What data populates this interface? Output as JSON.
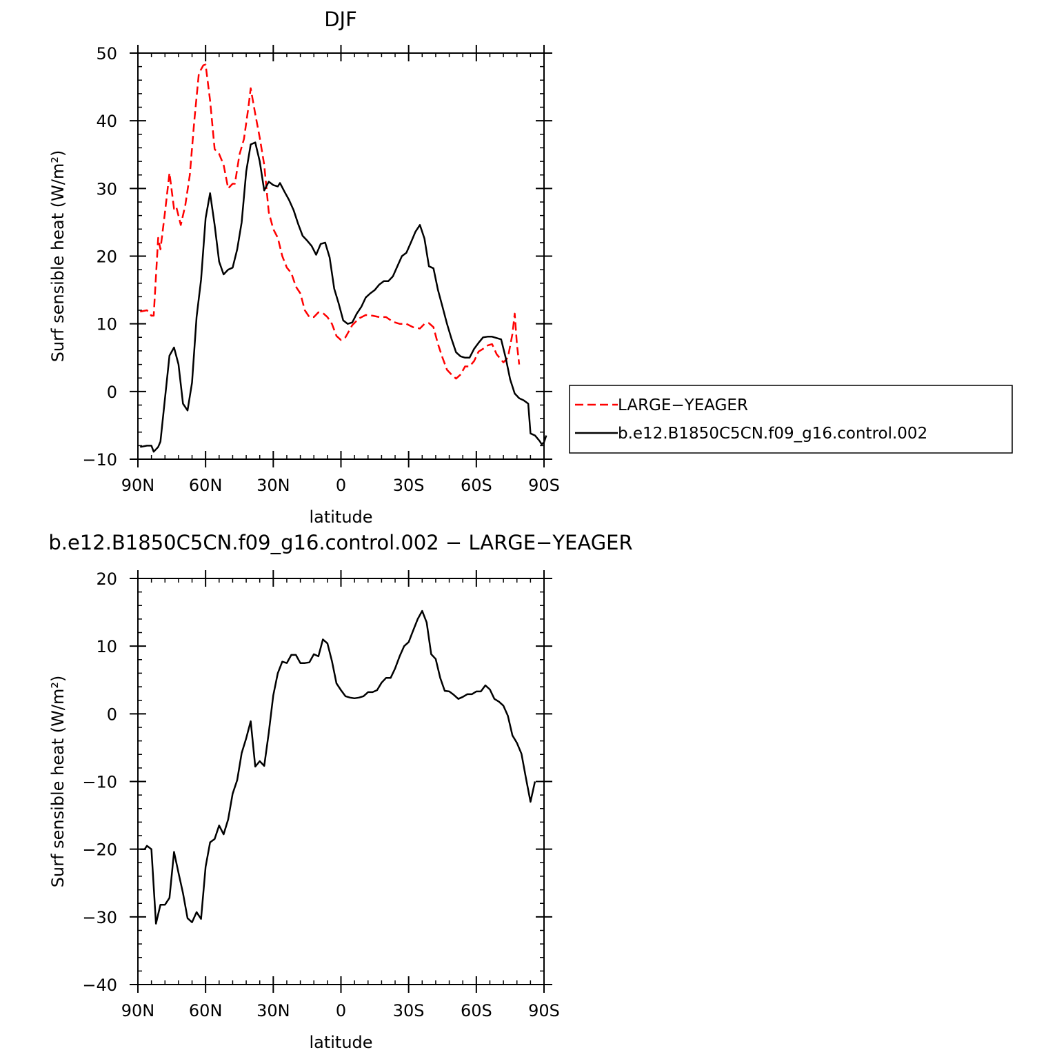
{
  "top_title": "DJF",
  "bottom_title": "b.e12.B1850C5CN.f09_g16.control.002 − LARGE−YEAGER",
  "legend": {
    "large": "LARGE−YEAGER",
    "control": "b.e12.B1850C5CN.f09_g16.control.002"
  },
  "chart_data": [
    {
      "type": "line",
      "title": "DJF",
      "xlabel": "latitude",
      "ylabel": "Surf sensible heat (W/m²)",
      "xlim": [
        90,
        -90
      ],
      "ylim": [
        -10,
        50
      ],
      "x_ticks": [
        90,
        60,
        30,
        0,
        -30,
        -60,
        -90
      ],
      "x_tick_labels": [
        "90N",
        "60N",
        "30N",
        "0",
        "30S",
        "60S",
        "90S"
      ],
      "y_ticks": [
        -10,
        0,
        10,
        20,
        30,
        40,
        50
      ],
      "y_tick_labels": [
        "−10",
        "0",
        "10",
        "20",
        "30",
        "40",
        "50"
      ],
      "legend_position": "right",
      "series": [
        {
          "name": "LARGE−YEAGER",
          "color": "#ff0000",
          "dash": "dashed",
          "points": [
            [
              89,
              11.8
            ],
            [
              86,
              12
            ],
            [
              84,
              11.2
            ],
            [
              83,
              11.2
            ],
            [
              81,
              22.7
            ],
            [
              80,
              21
            ],
            [
              78,
              26.5
            ],
            [
              76,
              32.3
            ],
            [
              74,
              27
            ],
            [
              73,
              27.3
            ],
            [
              71,
              24.6
            ],
            [
              69,
              27.5
            ],
            [
              67,
              32
            ],
            [
              65,
              40
            ],
            [
              63,
              47
            ],
            [
              61,
              48.2
            ],
            [
              60,
              48.3
            ],
            [
              58,
              43
            ],
            [
              56,
              35.8
            ],
            [
              54,
              35.1
            ],
            [
              52,
              33.5
            ],
            [
              50,
              30
            ],
            [
              48,
              30.7
            ],
            [
              47,
              30.7
            ],
            [
              45,
              35
            ],
            [
              43,
              37.3
            ],
            [
              41,
              42
            ],
            [
              40,
              44.8
            ],
            [
              38,
              41
            ],
            [
              36,
              37.5
            ],
            [
              34,
              33.5
            ],
            [
              32,
              26.5
            ],
            [
              30,
              24
            ],
            [
              28,
              22.7
            ],
            [
              26,
              20
            ],
            [
              24,
              18.3
            ],
            [
              22,
              17.5
            ],
            [
              20,
              15.5
            ],
            [
              18,
              14.5
            ],
            [
              16,
              12
            ],
            [
              14,
              11
            ],
            [
              12,
              11
            ],
            [
              10,
              11.7
            ],
            [
              8,
              11.6
            ],
            [
              6,
              11
            ],
            [
              4,
              10
            ],
            [
              2,
              8.2
            ],
            [
              0,
              7.6
            ],
            [
              -2,
              8
            ],
            [
              -5,
              9.8
            ],
            [
              -8,
              10.8
            ],
            [
              -11,
              11.3
            ],
            [
              -14,
              11.2
            ],
            [
              -17,
              11
            ],
            [
              -20,
              11
            ],
            [
              -23,
              10.3
            ],
            [
              -26,
              10
            ],
            [
              -29,
              10
            ],
            [
              -32,
              9.5
            ],
            [
              -35,
              9.3
            ],
            [
              -37,
              10
            ],
            [
              -39,
              10.1
            ],
            [
              -41,
              9.5
            ],
            [
              -43,
              7
            ],
            [
              -45,
              5
            ],
            [
              -47,
              3.2
            ],
            [
              -49,
              2.5
            ],
            [
              -51,
              1.9
            ],
            [
              -53,
              2.5
            ],
            [
              -55,
              3.7
            ],
            [
              -57,
              3.7
            ],
            [
              -59,
              4.5
            ],
            [
              -61,
              5.9
            ],
            [
              -63,
              6.3
            ],
            [
              -65,
              6.8
            ],
            [
              -67,
              7
            ],
            [
              -69,
              5.5
            ],
            [
              -72,
              4.3
            ],
            [
              -74,
              5
            ],
            [
              -76,
              8.5
            ],
            [
              -77,
              11.5
            ],
            [
              -78,
              7
            ],
            [
              -79,
              4
            ]
          ]
        },
        {
          "name": "b.e12.B1850C5CN.f09_g16.control.002",
          "color": "#000000",
          "dash": "solid",
          "points": [
            [
              89,
              -8.2
            ],
            [
              86,
              -8
            ],
            [
              84,
              -8
            ],
            [
              83,
              -8.9
            ],
            [
              81,
              -8.2
            ],
            [
              80,
              -7.4
            ],
            [
              78,
              -1
            ],
            [
              76,
              5.3
            ],
            [
              74,
              6.5
            ],
            [
              72,
              4
            ],
            [
              70,
              -1.8
            ],
            [
              68,
              -2.8
            ],
            [
              66,
              1.3
            ],
            [
              64,
              11
            ],
            [
              62,
              16.5
            ],
            [
              60,
              25.6
            ],
            [
              58,
              29.3
            ],
            [
              56,
              24.6
            ],
            [
              54,
              19.2
            ],
            [
              52,
              17.3
            ],
            [
              50,
              18
            ],
            [
              48,
              18.3
            ],
            [
              46,
              21
            ],
            [
              44,
              25
            ],
            [
              42,
              32.5
            ],
            [
              40,
              36.5
            ],
            [
              38,
              36.8
            ],
            [
              36,
              34
            ],
            [
              34,
              29.7
            ],
            [
              32,
              31
            ],
            [
              30,
              30.5
            ],
            [
              28,
              30.3
            ],
            [
              27,
              30.8
            ],
            [
              25,
              29.5
            ],
            [
              23,
              28.3
            ],
            [
              21,
              26.8
            ],
            [
              19,
              24.8
            ],
            [
              17,
              23
            ],
            [
              15,
              22.3
            ],
            [
              13,
              21.5
            ],
            [
              11,
              20.2
            ],
            [
              9,
              21.8
            ],
            [
              7,
              22
            ],
            [
              5,
              19.8
            ],
            [
              3,
              15.2
            ],
            [
              1,
              13
            ],
            [
              -1,
              10.5
            ],
            [
              -3,
              10
            ],
            [
              -5,
              10.2
            ],
            [
              -7,
              11.5
            ],
            [
              -9,
              12.5
            ],
            [
              -11,
              13.9
            ],
            [
              -13,
              14.5
            ],
            [
              -15,
              15
            ],
            [
              -17,
              15.8
            ],
            [
              -19,
              16.3
            ],
            [
              -21,
              16.3
            ],
            [
              -23,
              17
            ],
            [
              -25,
              18.5
            ],
            [
              -27,
              20
            ],
            [
              -29,
              20.5
            ],
            [
              -31,
              22
            ],
            [
              -33,
              23.6
            ],
            [
              -35,
              24.6
            ],
            [
              -37,
              22.6
            ],
            [
              -39,
              18.5
            ],
            [
              -41,
              18.2
            ],
            [
              -43,
              15
            ],
            [
              -45,
              12.5
            ],
            [
              -47,
              10
            ],
            [
              -49,
              7.8
            ],
            [
              -51,
              5.8
            ],
            [
              -53,
              5.2
            ],
            [
              -55,
              5
            ],
            [
              -57,
              5
            ],
            [
              -59,
              6.3
            ],
            [
              -61,
              7.2
            ],
            [
              -63,
              8
            ],
            [
              -65,
              8.1
            ],
            [
              -67,
              8.1
            ],
            [
              -69,
              7.9
            ],
            [
              -71,
              7.7
            ],
            [
              -73,
              5
            ],
            [
              -75,
              1.8
            ],
            [
              -77,
              -0.3
            ],
            [
              -79,
              -1
            ],
            [
              -81,
              -1.3
            ],
            [
              -83,
              -1.8
            ],
            [
              -84,
              -6.2
            ],
            [
              -86,
              -6.5
            ],
            [
              -88,
              -7.3
            ],
            [
              -89,
              -7.8
            ],
            [
              -90,
              -7.5
            ],
            [
              -91,
              -6.5
            ]
          ]
        }
      ]
    },
    {
      "type": "line",
      "title": "b.e12.B1850C5CN.f09_g16.control.002 − LARGE−YEAGER",
      "xlabel": "latitude",
      "ylabel": "Surf sensible heat (W/m²)",
      "xlim": [
        90,
        -90
      ],
      "ylim": [
        -40,
        20
      ],
      "x_ticks": [
        90,
        60,
        30,
        0,
        -30,
        -60,
        -90
      ],
      "x_tick_labels": [
        "90N",
        "60N",
        "30N",
        "0",
        "30S",
        "60S",
        "90S"
      ],
      "y_ticks": [
        -40,
        -30,
        -20,
        -10,
        0,
        10,
        20
      ],
      "y_tick_labels": [
        "−40",
        "−30",
        "−20",
        "−10",
        "0",
        "10",
        "20"
      ],
      "series": [
        {
          "name": "b.e12.B1850C5CN.f09_g16.control.002 − LARGE−YEAGER",
          "color": "#000000",
          "dash": "solid",
          "points": [
            [
              89,
              -20
            ],
            [
              87,
              -20
            ],
            [
              86,
              -19.5
            ],
            [
              84,
              -20
            ],
            [
              82,
              -31
            ],
            [
              80,
              -28.2
            ],
            [
              78,
              -28.2
            ],
            [
              76,
              -27.2
            ],
            [
              74,
              -20.4
            ],
            [
              72,
              -23.5
            ],
            [
              70,
              -26.5
            ],
            [
              68,
              -30.2
            ],
            [
              66,
              -30.8
            ],
            [
              64,
              -29.3
            ],
            [
              62,
              -30.3
            ],
            [
              60,
              -22.6
            ],
            [
              58,
              -19
            ],
            [
              56,
              -18.5
            ],
            [
              54,
              -16.5
            ],
            [
              52,
              -17.8
            ],
            [
              50,
              -15.6
            ],
            [
              48,
              -11.8
            ],
            [
              46,
              -9.8
            ],
            [
              44,
              -5.8
            ],
            [
              42,
              -3.6
            ],
            [
              40,
              -1.1
            ],
            [
              38,
              -7.8
            ],
            [
              36,
              -7
            ],
            [
              34,
              -7.7
            ],
            [
              32,
              -2.8
            ],
            [
              30,
              2.7
            ],
            [
              28,
              6
            ],
            [
              26,
              7.7
            ],
            [
              24,
              7.5
            ],
            [
              22,
              8.7
            ],
            [
              20,
              8.7
            ],
            [
              18,
              7.5
            ],
            [
              16,
              7.5
            ],
            [
              14,
              7.6
            ],
            [
              12,
              8.8
            ],
            [
              10,
              8.5
            ],
            [
              8,
              11
            ],
            [
              6,
              10.4
            ],
            [
              4,
              7.8
            ],
            [
              2,
              4.5
            ],
            [
              0,
              3.5
            ],
            [
              -2,
              2.6
            ],
            [
              -4,
              2.4
            ],
            [
              -6,
              2.3
            ],
            [
              -8,
              2.4
            ],
            [
              -10,
              2.6
            ],
            [
              -12,
              3.2
            ],
            [
              -14,
              3.2
            ],
            [
              -16,
              3.5
            ],
            [
              -18,
              4.6
            ],
            [
              -20,
              5.3
            ],
            [
              -22,
              5.3
            ],
            [
              -24,
              6.7
            ],
            [
              -26,
              8.5
            ],
            [
              -28,
              10
            ],
            [
              -30,
              10.6
            ],
            [
              -32,
              12.3
            ],
            [
              -34,
              14
            ],
            [
              -36,
              15.2
            ],
            [
              -38,
              13.5
            ],
            [
              -40,
              8.8
            ],
            [
              -42,
              8.1
            ],
            [
              -44,
              5.3
            ],
            [
              -46,
              3.4
            ],
            [
              -48,
              3.3
            ],
            [
              -50,
              2.8
            ],
            [
              -52,
              2.2
            ],
            [
              -54,
              2.5
            ],
            [
              -56,
              2.9
            ],
            [
              -58,
              2.9
            ],
            [
              -60,
              3.3
            ],
            [
              -62,
              3.3
            ],
            [
              -64,
              4.2
            ],
            [
              -66,
              3.6
            ],
            [
              -68,
              2.2
            ],
            [
              -70,
              1.8
            ],
            [
              -72,
              1.2
            ],
            [
              -74,
              -0.3
            ],
            [
              -76,
              -3.2
            ],
            [
              -78,
              -4.3
            ],
            [
              -80,
              -5.9
            ],
            [
              -82,
              -9.5
            ],
            [
              -84,
              -13
            ],
            [
              -86,
              -10
            ]
          ]
        }
      ]
    }
  ]
}
